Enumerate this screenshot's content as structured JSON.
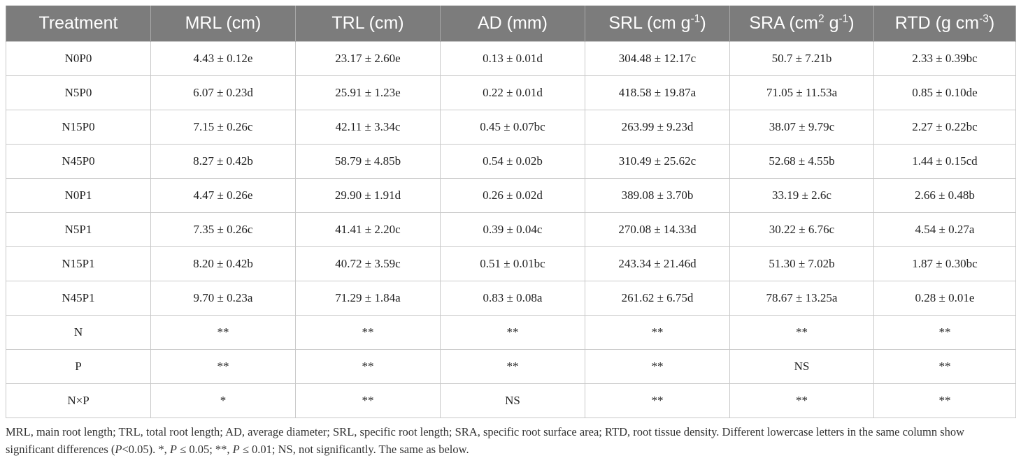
{
  "table": {
    "headers": [
      {
        "text": "Treatment",
        "sup": "",
        "after": ""
      },
      {
        "text": "MRL (cm)",
        "sup": "",
        "after": ""
      },
      {
        "text": "TRL (cm)",
        "sup": "",
        "after": ""
      },
      {
        "text": "AD (mm)",
        "sup": "",
        "after": ""
      },
      {
        "text": "SRL (cm g",
        "sup": "-1",
        "after": ")"
      },
      {
        "text": "SRA (cm",
        "sup": "2",
        "after": " g",
        "sup2": "-1",
        "after2": ")"
      },
      {
        "text": "RTD (g cm",
        "sup": "-3",
        "after": ")"
      }
    ],
    "rows": [
      [
        "N0P0",
        "4.43 ± 0.12e",
        "23.17 ± 2.60e",
        "0.13 ± 0.01d",
        "304.48 ± 12.17c",
        "50.7 ± 7.21b",
        "2.33 ± 0.39bc"
      ],
      [
        "N5P0",
        "6.07 ± 0.23d",
        "25.91 ± 1.23e",
        "0.22 ± 0.01d",
        "418.58 ± 19.87a",
        "71.05 ± 11.53a",
        "0.85 ± 0.10de"
      ],
      [
        "N15P0",
        "7.15 ± 0.26c",
        "42.11 ± 3.34c",
        "0.45 ± 0.07bc",
        "263.99 ± 9.23d",
        "38.07 ± 9.79c",
        "2.27 ± 0.22bc"
      ],
      [
        "N45P0",
        "8.27 ± 0.42b",
        "58.79 ± 4.85b",
        "0.54 ± 0.02b",
        "310.49 ± 25.62c",
        "52.68 ± 4.55b",
        "1.44 ± 0.15cd"
      ],
      [
        "N0P1",
        "4.47 ± 0.26e",
        "29.90 ± 1.91d",
        "0.26 ± 0.02d",
        "389.08 ± 3.70b",
        "33.19 ± 2.6c",
        "2.66 ± 0.48b"
      ],
      [
        "N5P1",
        "7.35 ± 0.26c",
        "41.41 ± 2.20c",
        "0.39 ± 0.04c",
        "270.08 ± 14.33d",
        "30.22 ± 6.76c",
        "4.54 ± 0.27a"
      ],
      [
        "N15P1",
        "8.20 ± 0.42b",
        "40.72 ± 3.59c",
        "0.51 ± 0.01bc",
        "243.34 ± 21.46d",
        "51.30 ± 7.02b",
        "1.87 ± 0.30bc"
      ],
      [
        "N45P1",
        "9.70 ± 0.23a",
        "71.29 ± 1.84a",
        "0.83 ± 0.08a",
        "261.62 ± 6.75d",
        "78.67 ± 13.25a",
        "0.28 ± 0.01e"
      ],
      [
        "N",
        "**",
        "**",
        "**",
        "**",
        "**",
        "**"
      ],
      [
        "P",
        "**",
        "**",
        "**",
        "**",
        "NS",
        "**"
      ],
      [
        "N×P",
        "*",
        "**",
        "NS",
        "**",
        "**",
        "**"
      ]
    ]
  },
  "footnote": "MRL, main root length; TRL, total root length; AD, average diameter; SRL, specific root length; SRA, specific root surface area; RTD, root tissue density. Different lowercase letters in the same column show significant differences (",
  "footnote_p": "P",
  "footnote_mid": "<0.05). *, ",
  "footnote_p2": "P",
  "footnote_mid2": " ≤ 0.05; **, ",
  "footnote_p3": "P",
  "footnote_end": " ≤ 0.01; NS, not significantly. The same as below."
}
